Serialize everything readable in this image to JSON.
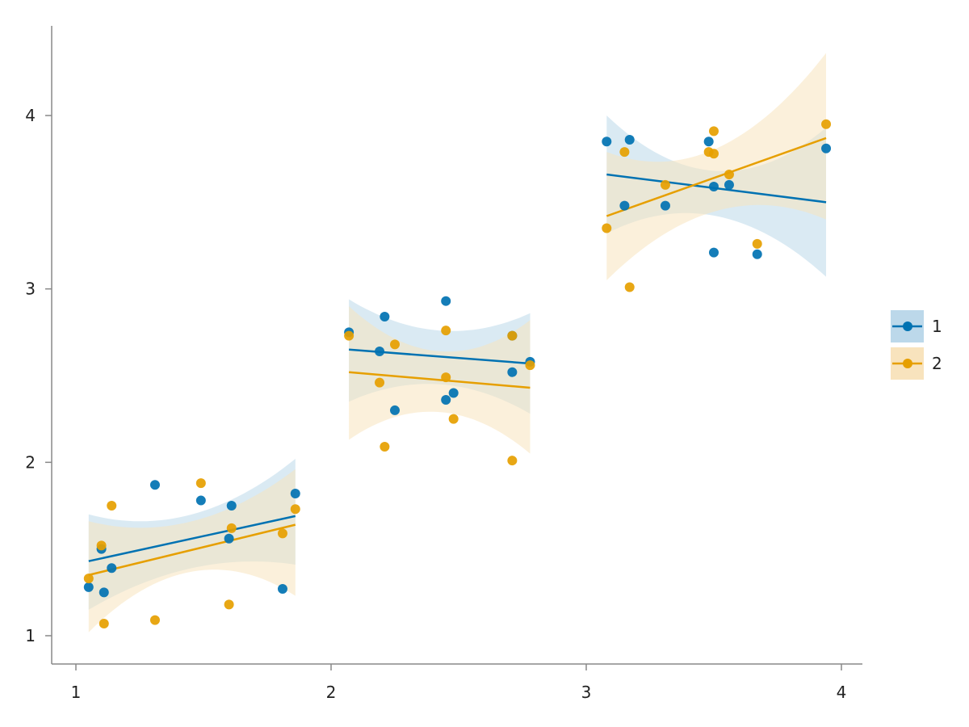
{
  "chart_data": {
    "type": "scatter",
    "title": "",
    "xlabel": "",
    "ylabel": "",
    "xlim": [
      0.91,
      4.09
    ],
    "ylim": [
      0.87,
      4.52
    ],
    "xticks": [
      1,
      2,
      3,
      4
    ],
    "yticks": [
      1,
      2,
      3,
      4
    ],
    "xtick_labels": [
      "1",
      "2",
      "3",
      "4"
    ],
    "ytick_labels": [
      "1",
      "2",
      "3",
      "4"
    ],
    "grid": false,
    "legend_position": "right",
    "series": [
      {
        "name": "1",
        "color": "#0072B2",
        "band_color": "#bcd8ea",
        "points": [
          [
            1.05,
            1.28
          ],
          [
            1.1,
            1.5
          ],
          [
            1.11,
            1.25
          ],
          [
            1.14,
            1.39
          ],
          [
            1.31,
            1.87
          ],
          [
            1.49,
            1.78
          ],
          [
            1.6,
            1.56
          ],
          [
            1.61,
            1.75
          ],
          [
            1.81,
            1.27
          ],
          [
            1.86,
            1.82
          ],
          [
            2.07,
            2.75
          ],
          [
            2.19,
            2.64
          ],
          [
            2.21,
            2.84
          ],
          [
            2.25,
            2.3
          ],
          [
            2.45,
            2.93
          ],
          [
            2.45,
            2.36
          ],
          [
            2.48,
            2.4
          ],
          [
            2.71,
            2.52
          ],
          [
            2.71,
            2.73
          ],
          [
            2.78,
            2.58
          ],
          [
            3.08,
            3.85
          ],
          [
            3.15,
            3.48
          ],
          [
            3.17,
            3.86
          ],
          [
            3.31,
            3.48
          ],
          [
            3.48,
            3.85
          ],
          [
            3.5,
            3.21
          ],
          [
            3.5,
            3.59
          ],
          [
            3.56,
            3.6
          ],
          [
            3.67,
            3.2
          ],
          [
            3.94,
            3.81
          ]
        ],
        "fits": [
          {
            "x0": 1.05,
            "x1": 1.86,
            "y0": 1.43,
            "y1": 1.69,
            "lo": [
              1.15,
              1.39,
              1.41
            ],
            "hi": [
              1.7,
              1.7,
              2.02
            ]
          },
          {
            "x0": 2.07,
            "x1": 2.78,
            "y0": 2.65,
            "y1": 2.57,
            "lo": [
              2.35,
              2.45,
              2.28
            ],
            "hi": [
              2.94,
              2.76,
              2.86
            ]
          },
          {
            "x0": 3.08,
            "x1": 3.94,
            "y0": 3.66,
            "y1": 3.5,
            "lo": [
              3.32,
              3.42,
              3.07
            ],
            "hi": [
              4.0,
              3.68,
              3.93
            ]
          }
        ]
      },
      {
        "name": "2",
        "color": "#E69F00",
        "band_color": "#f8e3bd",
        "points": [
          [
            1.05,
            1.33
          ],
          [
            1.1,
            1.52
          ],
          [
            1.11,
            1.07
          ],
          [
            1.14,
            1.75
          ],
          [
            1.31,
            1.09
          ],
          [
            1.49,
            1.88
          ],
          [
            1.6,
            1.18
          ],
          [
            1.61,
            1.62
          ],
          [
            1.81,
            1.59
          ],
          [
            1.86,
            1.73
          ],
          [
            2.07,
            2.73
          ],
          [
            2.19,
            2.46
          ],
          [
            2.21,
            2.09
          ],
          [
            2.25,
            2.68
          ],
          [
            2.45,
            2.76
          ],
          [
            2.45,
            2.49
          ],
          [
            2.48,
            2.25
          ],
          [
            2.71,
            2.01
          ],
          [
            2.71,
            2.73
          ],
          [
            2.78,
            2.56
          ],
          [
            3.08,
            3.35
          ],
          [
            3.15,
            3.79
          ],
          [
            3.17,
            3.01
          ],
          [
            3.31,
            3.6
          ],
          [
            3.48,
            3.79
          ],
          [
            3.5,
            3.91
          ],
          [
            3.5,
            3.78
          ],
          [
            3.56,
            3.66
          ],
          [
            3.67,
            3.26
          ],
          [
            3.94,
            3.95
          ]
        ],
        "fits": [
          {
            "x0": 1.05,
            "x1": 1.86,
            "y0": 1.35,
            "y1": 1.64,
            "lo": [
              1.02,
              1.37,
              1.23
            ],
            "hi": [
              1.66,
              1.66,
              1.96
            ]
          },
          {
            "x0": 2.07,
            "x1": 2.78,
            "y0": 2.52,
            "y1": 2.43,
            "lo": [
              2.13,
              2.29,
              2.05
            ],
            "hi": [
              2.9,
              2.64,
              2.82
            ]
          },
          {
            "x0": 3.08,
            "x1": 3.94,
            "y0": 3.42,
            "y1": 3.87,
            "lo": [
              3.05,
              3.45,
              3.4
            ],
            "hi": [
              3.79,
              3.81,
              4.36
            ]
          }
        ]
      }
    ]
  }
}
